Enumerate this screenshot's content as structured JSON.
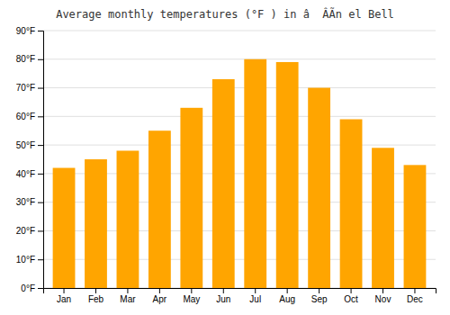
{
  "chart_data": {
    "type": "bar",
    "title": "Average monthly temperatures (°F ) in â  ÂÃn el Bell",
    "categories": [
      "Jan",
      "Feb",
      "Mar",
      "Apr",
      "May",
      "Jun",
      "Jul",
      "Aug",
      "Sep",
      "Oct",
      "Nov",
      "Dec"
    ],
    "values": [
      42,
      45,
      48,
      55,
      63,
      73,
      80,
      79,
      70,
      59,
      49,
      43
    ],
    "color": "#FFA500",
    "ylim": [
      0,
      90
    ],
    "yticks": [
      {
        "value": 0,
        "label": "0°F"
      },
      {
        "value": 10,
        "label": "10°F"
      },
      {
        "value": 20,
        "label": "20°F"
      },
      {
        "value": 30,
        "label": "30°F"
      },
      {
        "value": 40,
        "label": "40°F"
      },
      {
        "value": 50,
        "label": "50°F"
      },
      {
        "value": 60,
        "label": "60°F"
      },
      {
        "value": 70,
        "label": "70°F"
      },
      {
        "value": 80,
        "label": "80°F"
      },
      {
        "value": 90,
        "label": "90°F"
      }
    ],
    "grid": true
  }
}
